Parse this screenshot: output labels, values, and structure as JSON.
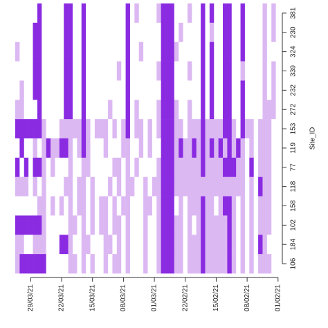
{
  "chart_data": {
    "type": "heatmap",
    "ylabel": "Site_ID",
    "categories": [
      "381",
      "230",
      "324",
      "339",
      "232",
      "272",
      "153",
      "119",
      "77",
      "118",
      "158",
      "102",
      "184",
      "106"
    ],
    "xlim": [
      -0.5,
      59.5
    ],
    "xticks": [
      {
        "value": 3,
        "label": "29/03/21"
      },
      {
        "value": 10,
        "label": "22/03/21"
      },
      {
        "value": 17,
        "label": "15/03/21"
      },
      {
        "value": 24,
        "label": "08/03/21"
      },
      {
        "value": 31,
        "label": "01/03/21"
      },
      {
        "value": 38,
        "label": "22/02/21"
      },
      {
        "value": 45,
        "label": "15/02/21"
      },
      {
        "value": 52,
        "label": "08/02/21"
      },
      {
        "value": 59,
        "label": "01/02/21"
      }
    ],
    "colors": [
      "#ffffff",
      "#dcb8f3",
      "#8a2be2"
    ],
    "z": [
      [
        0,
        0,
        0,
        0,
        0,
        2,
        0,
        0,
        0,
        0,
        0,
        2,
        2,
        0,
        0,
        2,
        0,
        0,
        0,
        0,
        0,
        0,
        0,
        0,
        0,
        2,
        0,
        1,
        0,
        0,
        0,
        0,
        1,
        2,
        2,
        2,
        0,
        0,
        0,
        1,
        0,
        0,
        2,
        0,
        2,
        0,
        0,
        2,
        2,
        0,
        0,
        2,
        0,
        0,
        0,
        0,
        1,
        0,
        1,
        0
      ],
      [
        0,
        0,
        0,
        0,
        2,
        2,
        0,
        0,
        0,
        0,
        0,
        2,
        2,
        0,
        0,
        2,
        0,
        0,
        0,
        0,
        0,
        0,
        0,
        0,
        0,
        2,
        0,
        0,
        0,
        0,
        0,
        0,
        0,
        2,
        2,
        2,
        0,
        1,
        0,
        0,
        0,
        0,
        2,
        0,
        1,
        0,
        0,
        2,
        2,
        0,
        0,
        2,
        0,
        0,
        0,
        0,
        1,
        0,
        1,
        0
      ],
      [
        1,
        0,
        0,
        0,
        2,
        2,
        0,
        0,
        0,
        0,
        0,
        2,
        2,
        0,
        0,
        2,
        0,
        0,
        0,
        0,
        0,
        0,
        0,
        0,
        0,
        2,
        0,
        0,
        1,
        0,
        0,
        0,
        0,
        2,
        2,
        2,
        1,
        0,
        0,
        0,
        0,
        0,
        2,
        0,
        2,
        0,
        0,
        2,
        2,
        0,
        0,
        2,
        0,
        0,
        0,
        0,
        1,
        0,
        0,
        0
      ],
      [
        0,
        0,
        0,
        0,
        2,
        2,
        0,
        0,
        0,
        0,
        0,
        2,
        2,
        0,
        0,
        2,
        0,
        0,
        0,
        0,
        0,
        0,
        0,
        1,
        0,
        2,
        0,
        0,
        0,
        0,
        0,
        0,
        1,
        2,
        2,
        2,
        0,
        0,
        0,
        1,
        0,
        0,
        2,
        0,
        2,
        0,
        0,
        2,
        2,
        0,
        0,
        1,
        0,
        0,
        0,
        0,
        1,
        0,
        1,
        0
      ],
      [
        0,
        1,
        0,
        0,
        2,
        2,
        0,
        0,
        0,
        0,
        0,
        2,
        2,
        0,
        0,
        2,
        0,
        0,
        0,
        0,
        0,
        0,
        0,
        0,
        0,
        2,
        0,
        0,
        0,
        0,
        0,
        0,
        0,
        2,
        2,
        2,
        0,
        0,
        0,
        0,
        0,
        0,
        2,
        0,
        2,
        0,
        0,
        2,
        2,
        0,
        0,
        2,
        0,
        0,
        0,
        0,
        1,
        0,
        1,
        0
      ],
      [
        1,
        1,
        0,
        0,
        0,
        2,
        0,
        0,
        0,
        0,
        0,
        2,
        2,
        0,
        0,
        2,
        0,
        0,
        0,
        0,
        0,
        1,
        0,
        0,
        0,
        2,
        0,
        1,
        0,
        0,
        0,
        0,
        1,
        2,
        2,
        2,
        1,
        0,
        0,
        1,
        0,
        0,
        2,
        0,
        2,
        0,
        0,
        2,
        2,
        0,
        0,
        2,
        0,
        0,
        0,
        0,
        1,
        1,
        1,
        0
      ],
      [
        2,
        2,
        2,
        2,
        2,
        2,
        1,
        0,
        0,
        0,
        1,
        1,
        1,
        1,
        1,
        2,
        1,
        0,
        1,
        1,
        1,
        0,
        1,
        0,
        1,
        2,
        0,
        1,
        1,
        0,
        1,
        0,
        1,
        2,
        2,
        2,
        1,
        1,
        0,
        1,
        1,
        1,
        2,
        1,
        1,
        1,
        1,
        2,
        2,
        1,
        0,
        2,
        1,
        1,
        0,
        1,
        1,
        1,
        0,
        0
      ],
      [
        0,
        2,
        0,
        0,
        1,
        0,
        1,
        2,
        1,
        1,
        2,
        2,
        1,
        0,
        1,
        2,
        1,
        0,
        0,
        0,
        1,
        0,
        0,
        0,
        1,
        1,
        0,
        0,
        1,
        0,
        1,
        0,
        0,
        2,
        2,
        2,
        1,
        2,
        1,
        1,
        2,
        1,
        2,
        1,
        2,
        1,
        2,
        1,
        2,
        1,
        2,
        1,
        0,
        1,
        0,
        1,
        1,
        1,
        0,
        0
      ],
      [
        2,
        0,
        2,
        0,
        2,
        2,
        1,
        0,
        1,
        0,
        0,
        0,
        1,
        0,
        0,
        1,
        1,
        0,
        0,
        0,
        0,
        0,
        1,
        1,
        0,
        1,
        0,
        1,
        0,
        0,
        0,
        0,
        1,
        2,
        2,
        2,
        1,
        1,
        1,
        1,
        1,
        1,
        2,
        1,
        1,
        1,
        1,
        2,
        2,
        2,
        1,
        1,
        0,
        2,
        0,
        1,
        1,
        1,
        0,
        0
      ],
      [
        1,
        1,
        1,
        0,
        1,
        0,
        1,
        0,
        0,
        0,
        0,
        1,
        1,
        0,
        1,
        1,
        0,
        1,
        0,
        0,
        0,
        1,
        0,
        1,
        0,
        1,
        1,
        0,
        0,
        1,
        0,
        1,
        1,
        2,
        2,
        2,
        1,
        1,
        1,
        1,
        1,
        1,
        1,
        1,
        1,
        1,
        1,
        1,
        1,
        1,
        1,
        1,
        0,
        1,
        0,
        2,
        1,
        1,
        0,
        0
      ],
      [
        0,
        0,
        0,
        0,
        0,
        1,
        1,
        0,
        1,
        0,
        1,
        0,
        1,
        0,
        1,
        1,
        0,
        1,
        0,
        1,
        1,
        0,
        1,
        0,
        1,
        1,
        0,
        0,
        0,
        1,
        1,
        0,
        1,
        2,
        2,
        2,
        0,
        1,
        0,
        1,
        1,
        1,
        2,
        1,
        1,
        0,
        1,
        2,
        2,
        1,
        0,
        1,
        0,
        1,
        0,
        1,
        1,
        1,
        0,
        0
      ],
      [
        2,
        2,
        2,
        2,
        2,
        2,
        1,
        0,
        0,
        0,
        0,
        0,
        1,
        1,
        0,
        1,
        0,
        1,
        0,
        1,
        1,
        0,
        1,
        1,
        0,
        1,
        0,
        0,
        0,
        1,
        0,
        0,
        1,
        2,
        2,
        2,
        1,
        1,
        0,
        1,
        0,
        1,
        2,
        1,
        1,
        1,
        1,
        1,
        2,
        1,
        0,
        1,
        0,
        1,
        0,
        1,
        1,
        1,
        0,
        0
      ],
      [
        1,
        1,
        0,
        0,
        1,
        1,
        1,
        0,
        0,
        0,
        2,
        2,
        1,
        0,
        0,
        1,
        1,
        0,
        0,
        0,
        1,
        1,
        0,
        1,
        0,
        1,
        0,
        0,
        0,
        1,
        0,
        0,
        1,
        2,
        2,
        2,
        1,
        1,
        0,
        1,
        1,
        1,
        2,
        1,
        1,
        1,
        1,
        1,
        2,
        1,
        0,
        1,
        0,
        1,
        0,
        2,
        1,
        0,
        0,
        0
      ],
      [
        1,
        2,
        2,
        2,
        2,
        2,
        2,
        0,
        0,
        0,
        0,
        0,
        1,
        1,
        0,
        1,
        0,
        1,
        0,
        0,
        1,
        0,
        1,
        1,
        0,
        1,
        0,
        0,
        0,
        1,
        0,
        0,
        1,
        2,
        2,
        2,
        1,
        1,
        0,
        1,
        1,
        1,
        2,
        1,
        1,
        1,
        1,
        1,
        2,
        1,
        0,
        1,
        0,
        1,
        0,
        1,
        1,
        1,
        0,
        0
      ]
    ]
  }
}
